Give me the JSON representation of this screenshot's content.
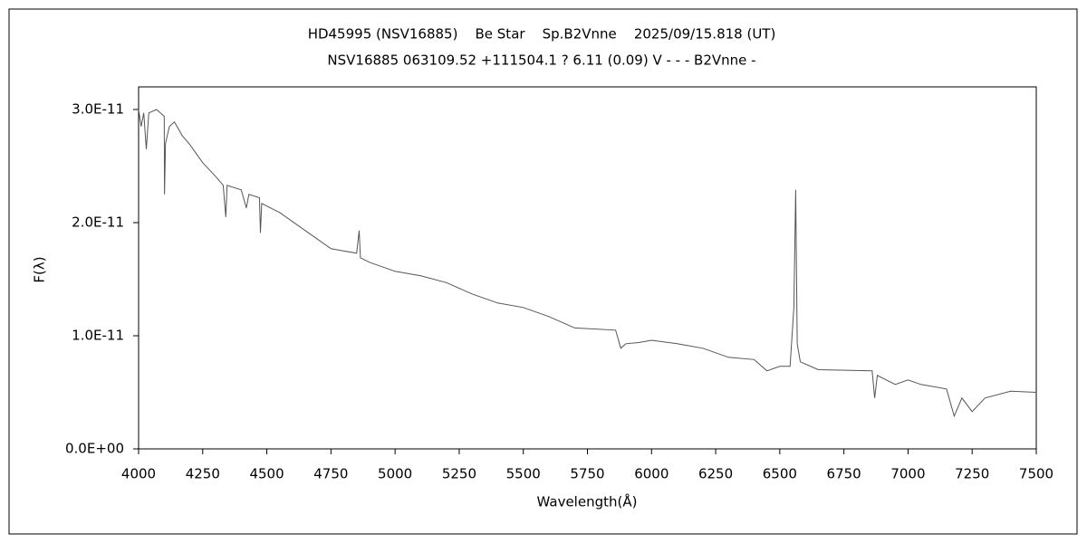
{
  "chart_data": {
    "type": "line",
    "title": "HD45995 (NSV16885)    Be Star    Sp.B2Vnne    2025/09/15.818 (UT)",
    "subtitle": "NSV16885 063109.52 +111504.1 ? 6.11 (0.09) V - - - B2Vnne -",
    "xlabel": "Wavelength(Å)",
    "ylabel": "F(λ)",
    "xlim": [
      4000,
      7500
    ],
    "ylim": [
      0,
      3.2e-11
    ],
    "xticks": [
      4000,
      4250,
      4500,
      4750,
      5000,
      5250,
      5500,
      5750,
      6000,
      6250,
      6500,
      6750,
      7000,
      7250,
      7500
    ],
    "yticks": [
      {
        "value": 0,
        "label": "0.0E+00"
      },
      {
        "value": 1e-11,
        "label": "1.0E-11"
      },
      {
        "value": 2e-11,
        "label": "2.0E-11"
      },
      {
        "value": 3e-11,
        "label": "3.0E-11"
      }
    ],
    "color": "#555555",
    "x": [
      4000,
      4010,
      4020,
      4030,
      4040,
      4070,
      4100,
      4101,
      4105,
      4120,
      4140,
      4170,
      4200,
      4250,
      4300,
      4330,
      4340,
      4345,
      4400,
      4420,
      4430,
      4471,
      4475,
      4480,
      4550,
      4650,
      4750,
      4850,
      4860,
      4865,
      4900,
      5000,
      5100,
      5200,
      5300,
      5400,
      5500,
      5600,
      5700,
      5860,
      5880,
      5900,
      5950,
      6000,
      6100,
      6200,
      6300,
      6400,
      6450,
      6500,
      6540,
      6555,
      6562,
      6568,
      6580,
      6650,
      6860,
      6870,
      6880,
      6950,
      7000,
      7050,
      7150,
      7180,
      7210,
      7250,
      7300,
      7400,
      7500
    ],
    "values": [
      3e-11,
      2.85e-11,
      2.97e-11,
      2.65e-11,
      2.97e-11,
      3e-11,
      2.94e-11,
      2.25e-11,
      2.7e-11,
      2.85e-11,
      2.89e-11,
      2.77e-11,
      2.69e-11,
      2.53e-11,
      2.41e-11,
      2.33e-11,
      2.05e-11,
      2.33e-11,
      2.29e-11,
      2.13e-11,
      2.25e-11,
      2.22e-11,
      1.91e-11,
      2.17e-11,
      2.09e-11,
      1.93e-11,
      1.77e-11,
      1.73e-11,
      1.93e-11,
      1.69e-11,
      1.65e-11,
      1.57e-11,
      1.53e-11,
      1.47e-11,
      1.37e-11,
      1.29e-11,
      1.25e-11,
      1.17e-11,
      1.07e-11,
      1.05e-11,
      8.9e-12,
      9.3e-12,
      9.4e-12,
      9.6e-12,
      9.3e-12,
      8.9e-12,
      8.1e-12,
      7.9e-12,
      6.9e-12,
      7.3e-12,
      7.3e-12,
      1.25e-11,
      2.29e-11,
      9.3e-12,
      7.7e-12,
      7e-12,
      6.9e-12,
      4.5e-12,
      6.5e-12,
      5.7e-12,
      6.1e-12,
      5.7e-12,
      5.3e-12,
      2.9e-12,
      4.5e-12,
      3.3e-12,
      4.5e-12,
      5.1e-12,
      5e-12
    ]
  }
}
